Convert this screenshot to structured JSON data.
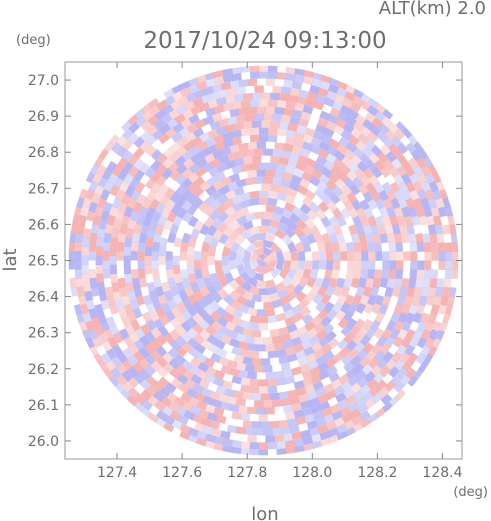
{
  "header": {
    "altitude_label": "ALT(km) 2.0",
    "timestamp": "2017/10/24 09:13:00",
    "lat_unit": "(deg)",
    "lon_unit": "(deg)"
  },
  "colors": {
    "positive": "#f4a6a6",
    "negative": "#a9a9f2",
    "axis": "#888888",
    "text": "#6e6e6e"
  },
  "chart_data": {
    "type": "heatmap",
    "title": "2017/10/24 09:13:00",
    "subtitle": "ALT(km) 2.0",
    "xlabel": "lon",
    "ylabel": "lat",
    "xlim": [
      127.24,
      128.46
    ],
    "ylim": [
      25.95,
      27.05
    ],
    "x_ticks": [
      "127.4",
      "127.6",
      "127.8",
      "128.0",
      "128.2",
      "128.4"
    ],
    "y_ticks": [
      "26.0",
      "26.1",
      "26.2",
      "26.3",
      "26.4",
      "26.5",
      "26.6",
      "26.7",
      "26.8",
      "26.9",
      "27.0"
    ],
    "center": {
      "lon": 127.85,
      "lat": 26.5
    },
    "radius_deg_lat": 0.54,
    "colorscale": [
      "negative (blue)",
      "zero (white)",
      "positive (red)"
    ],
    "grid": false
  }
}
